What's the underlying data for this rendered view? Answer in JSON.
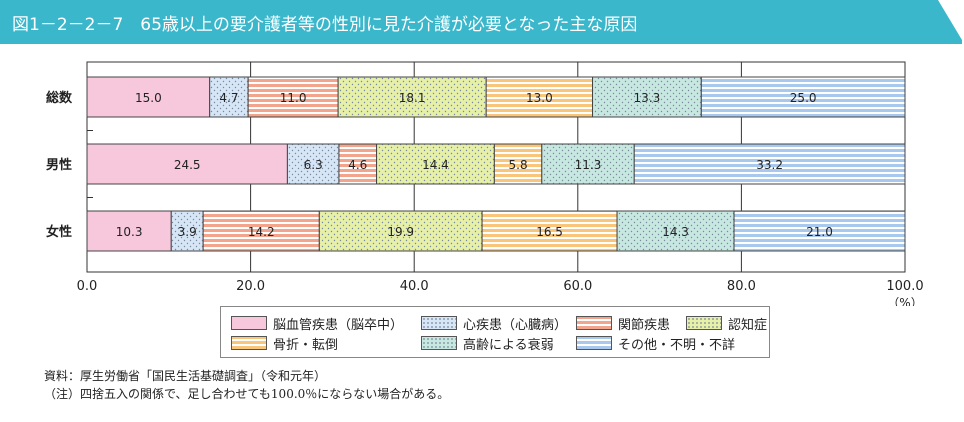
{
  "header": {
    "title": "図1－2－2－7　65歳以上の要介護者等の性別に見た介護が必要となった主な原因",
    "bg_color": "#3bb7cc"
  },
  "chart_data": {
    "type": "bar",
    "orientation": "horizontal",
    "stacked": true,
    "categories": [
      "総数",
      "男性",
      "女性"
    ],
    "series": [
      {
        "name": "脳血管疾患（脳卒中）",
        "values": [
          15.0,
          24.5,
          10.3
        ],
        "color": "#f7c8dc",
        "pattern": "solid"
      },
      {
        "name": "心疾患（心臓病）",
        "values": [
          4.7,
          6.3,
          3.9
        ],
        "color": "#d6e6f7",
        "pattern": "dots"
      },
      {
        "name": "関節疾患",
        "values": [
          11.0,
          4.6,
          14.2
        ],
        "color": "#f2a48c",
        "pattern": "hstripes"
      },
      {
        "name": "認知症",
        "values": [
          18.1,
          14.4,
          19.9
        ],
        "color": "#e6f0a8",
        "pattern": "dots"
      },
      {
        "name": "骨折・転倒",
        "values": [
          13.0,
          5.8,
          16.5
        ],
        "color": "#f8c57a",
        "pattern": "hstripes"
      },
      {
        "name": "高齢による衰弱",
        "values": [
          13.3,
          11.3,
          14.3
        ],
        "color": "#c6e8e0",
        "pattern": "dots"
      },
      {
        "name": "その他・不明・不詳",
        "values": [
          25.0,
          33.2,
          21.0
        ],
        "color": "#a9c8ee",
        "pattern": "hstripes"
      }
    ],
    "xlim": [
      0,
      100
    ],
    "xticks": [
      "0.0",
      "20.0",
      "40.0",
      "60.0",
      "80.0",
      "100.0"
    ],
    "xunit": "（%）",
    "grid": true,
    "legend_placement": "bottom"
  },
  "notes": {
    "source": "資料：厚生労働省「国民生活基礎調査」（令和元年）",
    "note": "（注）四捨五入の関係で、足し合わせても100.0％にならない場合がある。"
  }
}
